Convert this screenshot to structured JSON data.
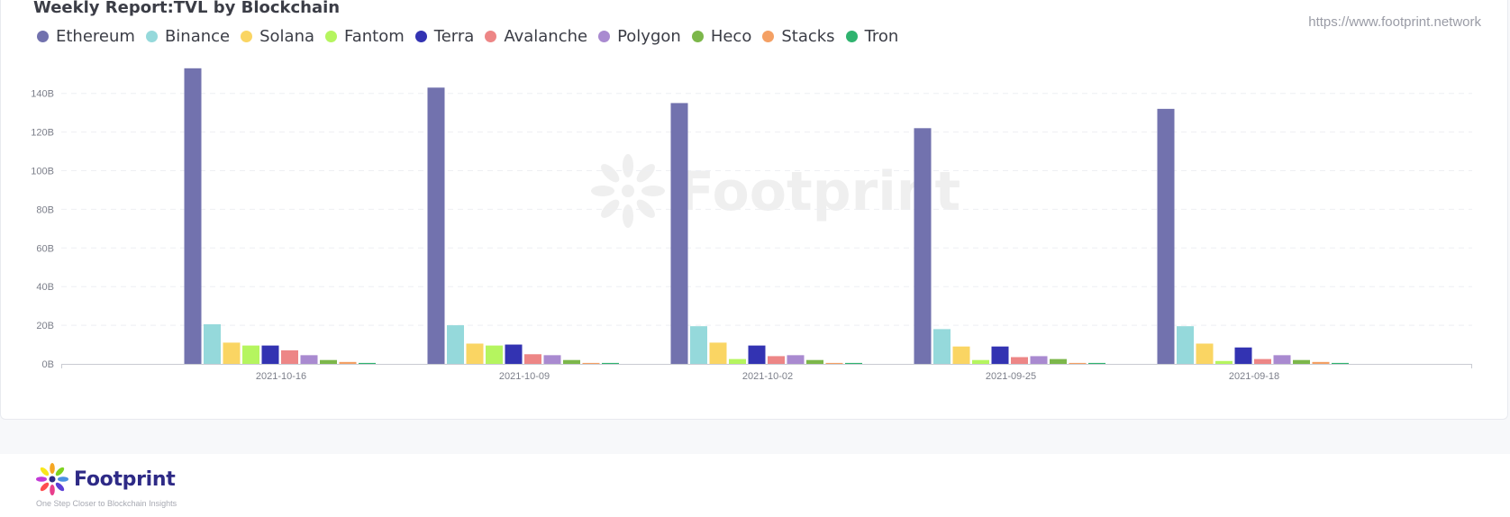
{
  "header": {
    "title": "Weekly Report:TVL by Blockchain",
    "source": "https://www.footprint.network"
  },
  "watermark": {
    "text": "Footprint"
  },
  "footer": {
    "brand": "Footprint",
    "tagline": "One Step Closer to Blockchain Insights"
  },
  "chart_data": {
    "type": "bar",
    "title": "Weekly Report:TVL by Blockchain",
    "xlabel": "",
    "ylabel": "",
    "ylim": [
      0,
      150
    ],
    "y_unit": "B",
    "yticks": [
      0,
      20,
      40,
      60,
      80,
      100,
      120,
      140
    ],
    "ytick_labels": [
      "0B",
      "20B",
      "40B",
      "60B",
      "80B",
      "100B",
      "120B",
      "140B"
    ],
    "grid": true,
    "legend_position": "top-left",
    "categories": [
      "2021-10-16",
      "2021-10-09",
      "2021-10-02",
      "2021-09-25",
      "2021-09-18"
    ],
    "series": [
      {
        "name": "Ethereum",
        "color": "#7272ae",
        "values": [
          153,
          143,
          135,
          122,
          132
        ]
      },
      {
        "name": "Binance",
        "color": "#95d9db",
        "values": [
          20.5,
          20,
          19.5,
          18,
          19.5
        ]
      },
      {
        "name": "Solana",
        "color": "#fad563",
        "values": [
          11,
          10.5,
          11,
          9,
          10.5
        ]
      },
      {
        "name": "Fantom",
        "color": "#b5f55f",
        "values": [
          9.5,
          9.5,
          2.5,
          2,
          1.5
        ]
      },
      {
        "name": "Terra",
        "color": "#3333b2",
        "values": [
          9.5,
          10,
          9.5,
          9,
          8.5
        ]
      },
      {
        "name": "Avalanche",
        "color": "#ed8686",
        "values": [
          7,
          5,
          4,
          3.5,
          2.5
        ]
      },
      {
        "name": "Polygon",
        "color": "#a98ad0",
        "values": [
          4.5,
          4.5,
          4.5,
          4,
          4.5
        ]
      },
      {
        "name": "Heco",
        "color": "#7cb74a",
        "values": [
          2,
          2,
          2,
          2.5,
          2
        ]
      },
      {
        "name": "Stacks",
        "color": "#f4a064",
        "values": [
          1,
          0.5,
          0.5,
          0.5,
          1
        ]
      },
      {
        "name": "Tron",
        "color": "#2fb36f",
        "values": [
          0.5,
          0.5,
          0.5,
          0.5,
          0.5
        ]
      }
    ]
  }
}
